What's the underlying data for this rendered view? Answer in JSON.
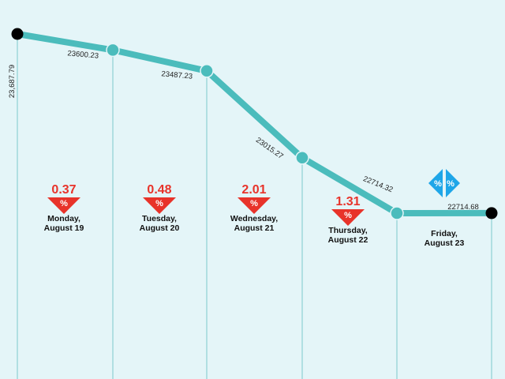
{
  "chart_data": {
    "type": "line",
    "categories": [
      "Monday, August 19",
      "Tuesday, August 20",
      "Wednesday, August 21",
      "Thursday, August 22",
      "Friday, August 23"
    ],
    "points": [
      {
        "label": "23,687.79",
        "value": 23687.79
      },
      {
        "label": "23600.23",
        "value": 23600.23
      },
      {
        "label": "23487.23",
        "value": 23487.23
      },
      {
        "label": "23015.27",
        "value": 23015.27
      },
      {
        "label": "22714.32",
        "value": 22714.32
      },
      {
        "label": "22714.68",
        "value": 22714.68
      }
    ],
    "days": [
      {
        "line1": "Monday,",
        "line2": "August 19",
        "change": "0.37",
        "direction": "down"
      },
      {
        "line1": "Tuesday,",
        "line2": "August 20",
        "change": "0.48",
        "direction": "down"
      },
      {
        "line1": "Wednesday,",
        "line2": "August 21",
        "change": "2.01",
        "direction": "down"
      },
      {
        "line1": "Thursday,",
        "line2": "August 22",
        "change": "1.31",
        "direction": "down"
      },
      {
        "line1": "Friday,",
        "line2": "August 23",
        "change": "",
        "direction": "flat"
      }
    ],
    "percent_symbol": "%",
    "colors": {
      "background": "#e4f5f8",
      "line": "#4bbcbc",
      "gridline": "#7cc9cc",
      "endpoint": "#000000",
      "down": "#e8332a",
      "flat": "#1ea6e8"
    }
  }
}
